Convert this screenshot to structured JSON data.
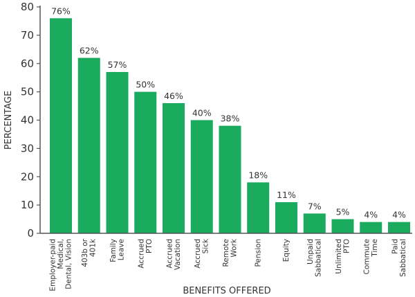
{
  "chart_data": {
    "type": "bar",
    "xlabel": "BENEFITS OFFERED",
    "ylabel": "PERCENTAGE",
    "ylim": [
      0,
      80
    ],
    "yticks": [
      0,
      10,
      20,
      30,
      40,
      50,
      60,
      70,
      80
    ],
    "categories": [
      [
        "Employer-paid",
        "Medical,",
        "Dental, Vision"
      ],
      [
        "403b or",
        "401k"
      ],
      [
        "Family",
        "Leave"
      ],
      [
        "Accrued",
        "PTO"
      ],
      [
        "Accrued",
        "Vacation"
      ],
      [
        "Accrued",
        "Sick"
      ],
      [
        "Remote",
        "Work"
      ],
      [
        "Pension"
      ],
      [
        "Equity"
      ],
      [
        "Unpaid",
        "Sabbatical"
      ],
      [
        "Unlimited",
        "PTO"
      ],
      [
        "Commute",
        "Time"
      ],
      [
        "Paid",
        "Sabbatical"
      ]
    ],
    "values": [
      76,
      62,
      57,
      50,
      46,
      40,
      38,
      18,
      11,
      7,
      5,
      4,
      4
    ],
    "data_labels": [
      "76%",
      "62%",
      "57%",
      "50%",
      "46%",
      "40%",
      "38%",
      "18%",
      "11%",
      "7%",
      "5%",
      "4%",
      "4%"
    ],
    "grid": false,
    "legend": "none",
    "bar_color": "#1aab5f",
    "axis_color": "#555555"
  }
}
